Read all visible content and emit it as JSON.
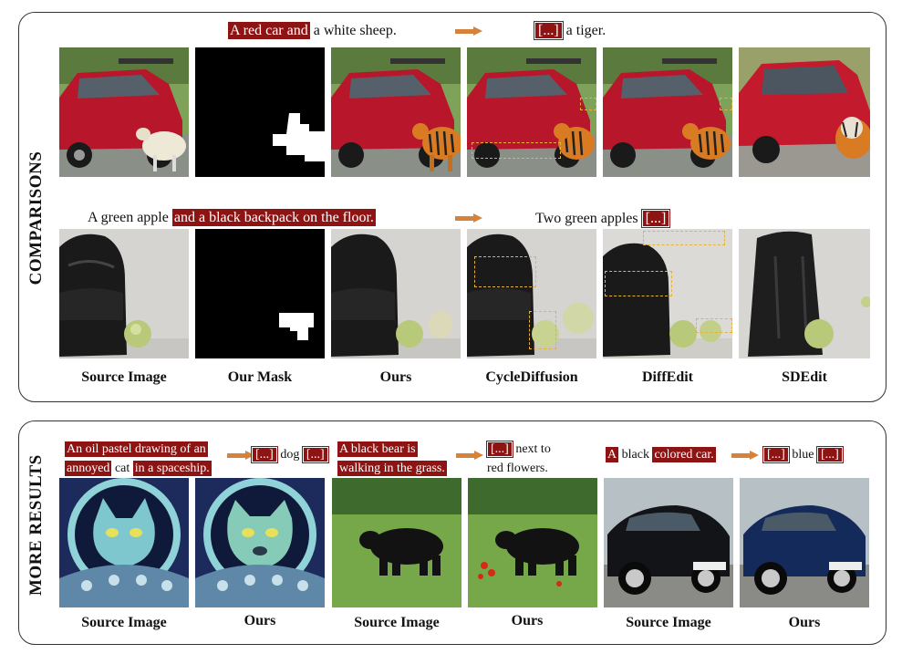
{
  "comparisons": {
    "label": "COMPARISONS",
    "row1": {
      "src_prefix_hl": "A red car and",
      "src_rest": "a white sheep.",
      "tgt_hl": "[...]",
      "tgt_rest": "a tiger."
    },
    "row2": {
      "src_prefix": "A green apple",
      "src_hl": "and a black backpack on the floor.",
      "tgt_prefix": "Two green apples",
      "tgt_hl": "[...]"
    },
    "captions": [
      "Source Image",
      "Our Mask",
      "Ours",
      "CycleDiffusion",
      "DiffEdit",
      "SDEdit"
    ]
  },
  "more": {
    "label": "MORE RESULTS",
    "ex1": {
      "line1_hl": "An oil pastel drawing of an",
      "line2_hl_a": "annoyed",
      "line2_plain": "cat",
      "line2_hl_b": "in a spaceship.",
      "tgt_hl_a": "[...]",
      "tgt_plain": "dog",
      "tgt_hl_b": "[...]"
    },
    "ex2": {
      "line1_hl": "A black bear is",
      "line2_hl": "walking in the grass.",
      "tgt_hl": "[...]",
      "tgt_line1": "next to",
      "tgt_line2": "red flowers."
    },
    "ex3": {
      "hl_a": "A",
      "plain": "black",
      "hl_b": "colored car.",
      "tgt_hl_a": "[...]",
      "tgt_plain": "blue",
      "tgt_hl_b": "[...]"
    },
    "captions": [
      "Source Image",
      "Ours",
      "Source Image",
      "Ours",
      "Source Image",
      "Ours"
    ]
  },
  "colors": {
    "highlight": "#8e1414",
    "arrow": "#d7823a",
    "dash": "#e6b23a"
  }
}
